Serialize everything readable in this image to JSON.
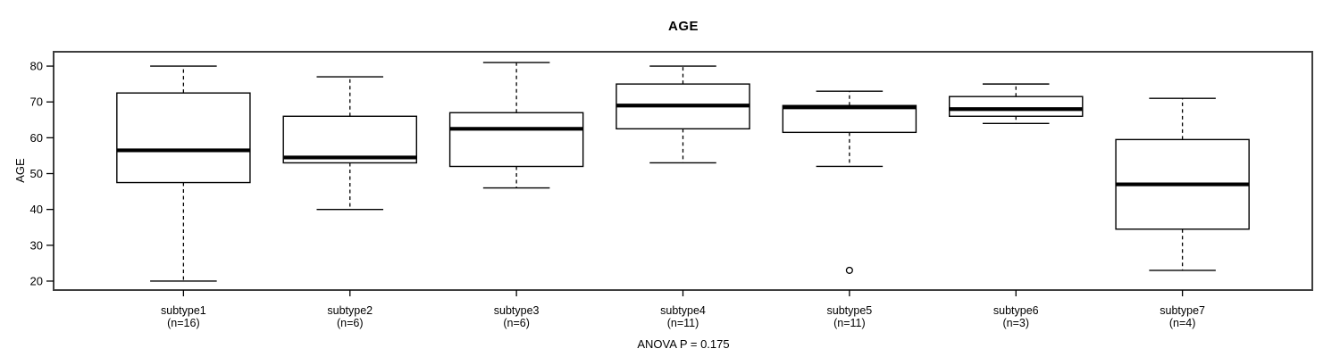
{
  "chart_data": {
    "type": "boxplot",
    "title": "AGE",
    "ylabel": "AGE",
    "xlabel": "",
    "annotation": "ANOVA P = 0.175",
    "ylim": [
      17.5,
      84
    ],
    "yticks": [
      20,
      30,
      40,
      50,
      60,
      70,
      80
    ],
    "grid": false,
    "legend": "none",
    "categories": [
      "subtype1",
      "subtype2",
      "subtype3",
      "subtype4",
      "subtype5",
      "subtype6",
      "subtype7"
    ],
    "groups": [
      {
        "label": "subtype1",
        "sublabel": "(n=16)",
        "n": 16,
        "whisker_low": 20,
        "q1": 47.5,
        "median": 56.5,
        "q3": 72.5,
        "whisker_high": 80,
        "outliers": []
      },
      {
        "label": "subtype2",
        "sublabel": "(n=6)",
        "n": 6,
        "whisker_low": 40,
        "q1": 53,
        "median": 54.5,
        "q3": 66,
        "whisker_high": 77,
        "outliers": []
      },
      {
        "label": "subtype3",
        "sublabel": "(n=6)",
        "n": 6,
        "whisker_low": 46,
        "q1": 52,
        "median": 62.5,
        "q3": 67,
        "whisker_high": 81,
        "outliers": []
      },
      {
        "label": "subtype4",
        "sublabel": "(n=11)",
        "n": 11,
        "whisker_low": 53,
        "q1": 62.5,
        "median": 69,
        "q3": 75,
        "whisker_high": 80,
        "outliers": []
      },
      {
        "label": "subtype5",
        "sublabel": "(n=11)",
        "n": 11,
        "whisker_low": 52,
        "q1": 61.5,
        "median": 68.5,
        "q3": 69,
        "whisker_high": 73,
        "outliers": [
          23
        ]
      },
      {
        "label": "subtype6",
        "sublabel": "(n=3)",
        "n": 3,
        "whisker_low": 64,
        "q1": 66,
        "median": 68,
        "q3": 71.5,
        "whisker_high": 75,
        "outliers": []
      },
      {
        "label": "subtype7",
        "sublabel": "(n=4)",
        "n": 4,
        "whisker_low": 23,
        "q1": 34.5,
        "median": 47,
        "q3": 59.5,
        "whisker_high": 71,
        "outliers": []
      }
    ]
  },
  "colors": {
    "background": "#ffffff",
    "box_fill": "#ffffff",
    "box_stroke": "#000000",
    "median": "#000000",
    "whisker": "#000000",
    "outlier": "#000000",
    "plot_border": "#3f3f3f",
    "text": "#000000"
  }
}
